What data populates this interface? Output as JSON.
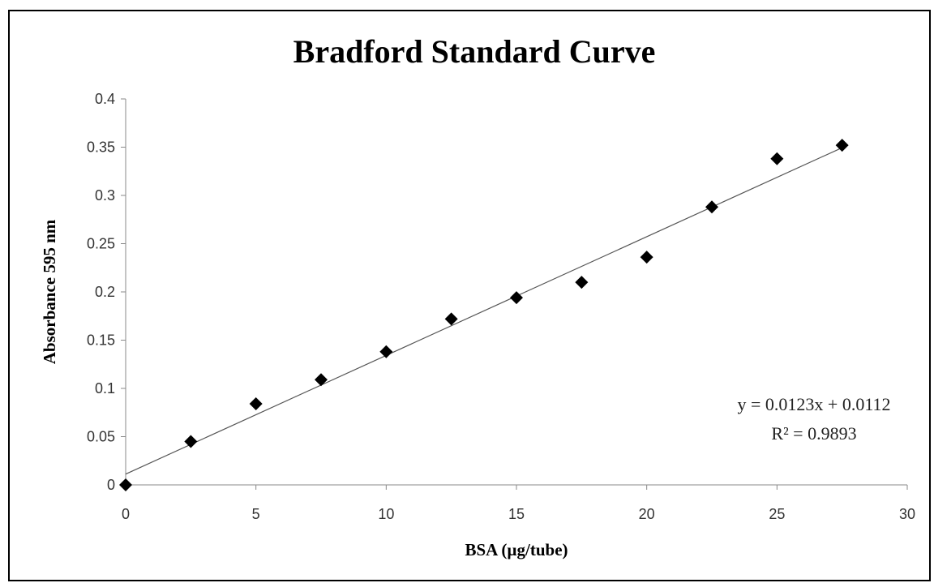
{
  "chart_data": {
    "type": "scatter",
    "title": "Bradford Standard Curve",
    "xlabel": "BSA (µg/tube)",
    "ylabel": "Absorbance 595 nm",
    "xlim": [
      0,
      30
    ],
    "ylim": [
      0,
      0.4
    ],
    "xticks": [
      "0",
      "5",
      "10",
      "15",
      "20",
      "25",
      "30"
    ],
    "yticks": [
      "0",
      "0.05",
      "0.1",
      "0.15",
      "0.2",
      "0.25",
      "0.3",
      "0.35",
      "0.4"
    ],
    "grid": false,
    "legend": "none",
    "marker": "diamond",
    "marker_color": "#000000",
    "series": [
      {
        "x": [
          0,
          2.5,
          5,
          7.5,
          10,
          12.5,
          15,
          17.5,
          20,
          22.5,
          25,
          27.5
        ],
        "y": [
          0,
          0.045,
          0.084,
          0.109,
          0.138,
          0.172,
          0.194,
          0.21,
          0.236,
          0.288,
          0.338,
          0.352
        ]
      }
    ],
    "trendline": {
      "type": "linear",
      "slope": 0.0123,
      "intercept": 0.0112,
      "x_range": [
        0,
        27.5
      ],
      "color": "#555555",
      "equation": "y = 0.0123x + 0.0112",
      "r2_label": "R² = 0.9893"
    }
  }
}
